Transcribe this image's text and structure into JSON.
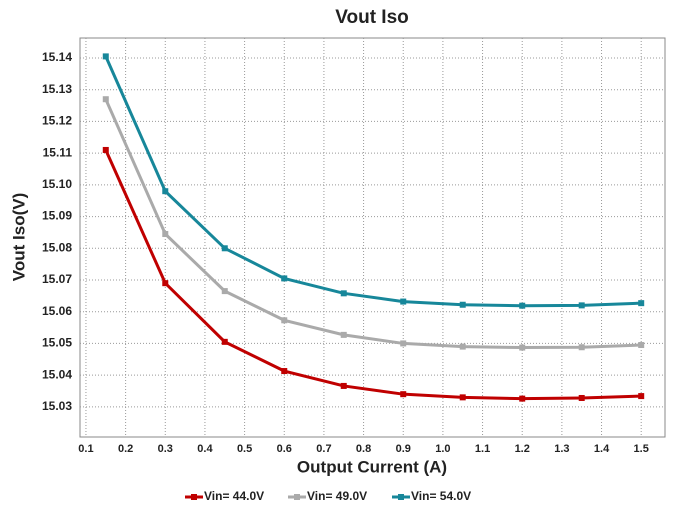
{
  "chart_data": {
    "type": "line",
    "title": "Vout Iso",
    "x_label": "Output Current (A)",
    "y_label": "Vout Iso(V)",
    "x": [
      0.15,
      0.3,
      0.45,
      0.6,
      0.75,
      0.9,
      1.05,
      1.2,
      1.35,
      1.5
    ],
    "series": [
      {
        "name": "Vin= 44.0V",
        "color": "#c00000",
        "values": [
          15.111,
          15.069,
          15.0505,
          15.0413,
          15.0366,
          15.034,
          15.033,
          15.0326,
          15.0328,
          15.0334
        ]
      },
      {
        "name": "Vin= 49.0V",
        "color": "#aaaaaa",
        "values": [
          15.127,
          15.0845,
          15.0665,
          15.0573,
          15.0527,
          15.05,
          15.049,
          15.0487,
          15.0488,
          15.0495
        ]
      },
      {
        "name": "Vin= 54.0V",
        "color": "#17879a",
        "values": [
          15.1405,
          15.098,
          15.08,
          15.0705,
          15.0658,
          15.0632,
          15.0622,
          15.0619,
          15.062,
          15.0627
        ]
      }
    ],
    "xlim": [
      0.085,
      1.56
    ],
    "xticks": [
      0.1,
      0.2,
      0.3,
      0.4,
      0.5,
      0.6,
      0.7,
      0.8,
      0.9,
      {
        "value": 1,
        "label": "1.0"
      },
      1.1,
      1.2,
      1.3,
      1.4,
      1.5
    ],
    "ylim": [
      15.0205,
      15.1463
    ],
    "yticks": [
      15.03,
      15.04,
      15.05,
      15.06,
      15.07,
      15.08,
      15.09,
      {
        "value": 15.1,
        "label": "15.10"
      },
      15.11,
      15.12,
      15.13,
      15.14
    ],
    "grid": true,
    "legend": "bottom"
  }
}
